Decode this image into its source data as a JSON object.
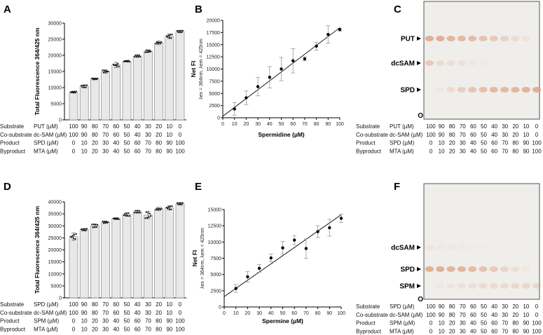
{
  "panel_labels": [
    "A",
    "B",
    "C",
    "D",
    "E",
    "F"
  ],
  "chart_data": [
    {
      "id": "A",
      "type": "bar",
      "ylabel": "Total Fluorescence 364/425 nm",
      "ylim": [
        0,
        30000
      ],
      "yticks": [
        0,
        5000,
        10000,
        15000,
        20000,
        25000,
        30000
      ],
      "values": [
        8600,
        10400,
        12700,
        15000,
        17000,
        18200,
        19800,
        21300,
        23900,
        25900,
        27400
      ],
      "errors": [
        300,
        400,
        200,
        500,
        800,
        200,
        300,
        400,
        600,
        700,
        300
      ],
      "table": {
        "rows": [
          {
            "role": "Substrate",
            "compound": "PUT (µM)",
            "values": [
              "100",
              "90",
              "80",
              "70",
              "60",
              "50",
              "40",
              "30",
              "20",
              "10",
              "0"
            ]
          },
          {
            "role": "Co-substrate",
            "compound": "dc-SAM (µM)",
            "values": [
              "100",
              "90",
              "80",
              "70",
              "60",
              "50",
              "40",
              "30",
              "20",
              "10",
              "0"
            ]
          },
          {
            "role": "Product",
            "compound": "SPD (µM)",
            "values": [
              "0",
              "10",
              "20",
              "30",
              "40",
              "50",
              "60",
              "70",
              "80",
              "90",
              "100"
            ]
          },
          {
            "role": "Byproduct",
            "compound": "MTA (µM)",
            "values": [
              "0",
              "10",
              "20",
              "30",
              "40",
              "50",
              "60",
              "70",
              "80",
              "90",
              "100"
            ]
          }
        ]
      }
    },
    {
      "id": "B",
      "type": "scatter",
      "xlabel": "Spermidine (µM)",
      "ylabel": "Net FI",
      "ylabel2": "λex = 364nm, λem = 425nm",
      "xlim": [
        0,
        100
      ],
      "ylim": [
        0,
        20000
      ],
      "xticks": [
        0,
        10,
        20,
        30,
        40,
        50,
        60,
        70,
        80,
        90,
        100
      ],
      "yticks": [
        0,
        2500,
        5000,
        7500,
        10000,
        12500,
        15000,
        17500,
        20000
      ],
      "x": [
        10,
        20,
        30,
        40,
        50,
        60,
        70,
        80,
        90,
        100
      ],
      "y": [
        1800,
        4100,
        6400,
        8300,
        10000,
        11700,
        12100,
        14700,
        17100,
        18100
      ],
      "errors": [
        1300,
        1400,
        1900,
        2200,
        2400,
        2500,
        400,
        800,
        1800,
        300
      ],
      "fit": [
        [
          0,
          300
        ],
        [
          100,
          18500
        ]
      ]
    },
    {
      "id": "D",
      "type": "bar",
      "ylabel": "Total Fluorescence 364/425 nm",
      "ylim": [
        0,
        40000
      ],
      "yticks": [
        0,
        5000,
        10000,
        15000,
        20000,
        25000,
        30000,
        35000,
        40000
      ],
      "values": [
        25500,
        28400,
        30000,
        31500,
        33000,
        34700,
        35900,
        34500,
        37000,
        37500,
        39200
      ],
      "errors": [
        1500,
        400,
        700,
        500,
        400,
        700,
        500,
        1500,
        700,
        900,
        400
      ],
      "table": {
        "rows": [
          {
            "role": "Substrate",
            "compound": "SPD (µM)",
            "values": [
              "100",
              "90",
              "80",
              "70",
              "60",
              "50",
              "40",
              "30",
              "20",
              "10",
              "0"
            ]
          },
          {
            "role": "Co-substrate",
            "compound": "dc-SAM (µM)",
            "values": [
              "100",
              "90",
              "80",
              "70",
              "60",
              "50",
              "40",
              "30",
              "20",
              "10",
              "0"
            ]
          },
          {
            "role": "Product",
            "compound": "SPM (µM)",
            "values": [
              "0",
              "10",
              "20",
              "30",
              "40",
              "50",
              "60",
              "70",
              "80",
              "90",
              "100"
            ]
          },
          {
            "role": "Byproduct",
            "compound": "MTA (µM)",
            "values": [
              "0",
              "10",
              "20",
              "30",
              "40",
              "50",
              "60",
              "70",
              "80",
              "90",
              "100"
            ]
          }
        ]
      }
    },
    {
      "id": "E",
      "type": "scatter",
      "xlabel": "Spermine (µM)",
      "ylabel": "Net FI",
      "ylabel2": "λex = 364nm, λem = 425nm",
      "xlim": [
        0,
        100
      ],
      "ylim": [
        0,
        15000
      ],
      "xticks": [
        0,
        10,
        20,
        30,
        40,
        50,
        60,
        70,
        80,
        90,
        100
      ],
      "yticks": [
        0,
        2500,
        5000,
        7500,
        10000,
        12500,
        15000
      ],
      "x": [
        10,
        20,
        30,
        40,
        50,
        60,
        70,
        80,
        90,
        100
      ],
      "y": [
        2850,
        4650,
        5950,
        7550,
        9100,
        10300,
        9000,
        11600,
        12200,
        13650
      ],
      "errors": [
        600,
        800,
        600,
        600,
        1000,
        700,
        1500,
        900,
        1300,
        650
      ],
      "fit": [
        [
          0,
          1600
        ],
        [
          100,
          14200
        ]
      ]
    }
  ],
  "tlc": [
    {
      "id": "C",
      "origin": "O",
      "bands": [
        {
          "label": "PUT",
          "intensity": [
            1,
            1,
            0.9,
            0.85,
            0.8,
            0.7,
            0.6,
            0.45,
            0.3,
            0.15,
            0
          ]
        },
        {
          "label": "dcSAM",
          "intensity": [
            0.6,
            0.3,
            0.25,
            0.2,
            0.1,
            0.05,
            0,
            0,
            0,
            0,
            0
          ]
        },
        {
          "label": "SPD",
          "intensity": [
            0,
            0.1,
            0.3,
            0.5,
            0.65,
            0.75,
            0.85,
            0.85,
            0.9,
            0.95,
            1
          ]
        }
      ],
      "table": {
        "rows": [
          {
            "role": "Substrate",
            "compound": "PUT (µM)",
            "values": [
              "100",
              "90",
              "80",
              "70",
              "60",
              "50",
              "40",
              "30",
              "20",
              "10",
              "0"
            ]
          },
          {
            "role": "Co-substrate",
            "compound": "dc-SAM (µM)",
            "values": [
              "100",
              "90",
              "80",
              "70",
              "60",
              "50",
              "40",
              "30",
              "20",
              "10",
              "0"
            ]
          },
          {
            "role": "Product",
            "compound": "SPD (µM)",
            "values": [
              "0",
              "10",
              "20",
              "30",
              "40",
              "50",
              "60",
              "70",
              "80",
              "90",
              "100"
            ]
          },
          {
            "role": "Byproduct",
            "compound": "MTA (µM)",
            "values": [
              "0",
              "10",
              "20",
              "30",
              "40",
              "50",
              "60",
              "70",
              "80",
              "90",
              "100"
            ]
          }
        ]
      }
    },
    {
      "id": "F",
      "origin": "O",
      "bands": [
        {
          "label": "dcSAM",
          "intensity": [
            0.15,
            0.1,
            0.1,
            0.08,
            0.05,
            0.03,
            0,
            0,
            0,
            0,
            0
          ]
        },
        {
          "label": "SPD",
          "intensity": [
            1,
            1,
            0.95,
            0.9,
            0.8,
            0.7,
            0.55,
            0.4,
            0.25,
            0.1,
            0
          ]
        },
        {
          "label": "SPM",
          "intensity": [
            0,
            0.1,
            0.15,
            0.2,
            0.25,
            0.3,
            0.3,
            0.3,
            0.35,
            0.35,
            0.35
          ]
        }
      ],
      "table": {
        "rows": [
          {
            "role": "Substrate",
            "compound": "SPD (µM)",
            "values": [
              "100",
              "90",
              "80",
              "70",
              "60",
              "50",
              "40",
              "30",
              "20",
              "10",
              "0"
            ]
          },
          {
            "role": "Co-substrate",
            "compound": "dc-SAM (µM)",
            "values": [
              "100",
              "90",
              "80",
              "70",
              "60",
              "50",
              "40",
              "30",
              "20",
              "10",
              "0"
            ]
          },
          {
            "role": "Product",
            "compound": "SPM (µM)",
            "values": [
              "0",
              "10",
              "20",
              "30",
              "40",
              "50",
              "60",
              "70",
              "80",
              "90",
              "100"
            ]
          },
          {
            "role": "Byproduct",
            "compound": "MTA (µM)",
            "values": [
              "0",
              "10",
              "20",
              "30",
              "40",
              "50",
              "60",
              "70",
              "80",
              "90",
              "100"
            ]
          }
        ]
      }
    }
  ],
  "colors": {
    "bar": "#e8e8e8",
    "band": "#e0a080",
    "gel": "#efeeeb"
  }
}
